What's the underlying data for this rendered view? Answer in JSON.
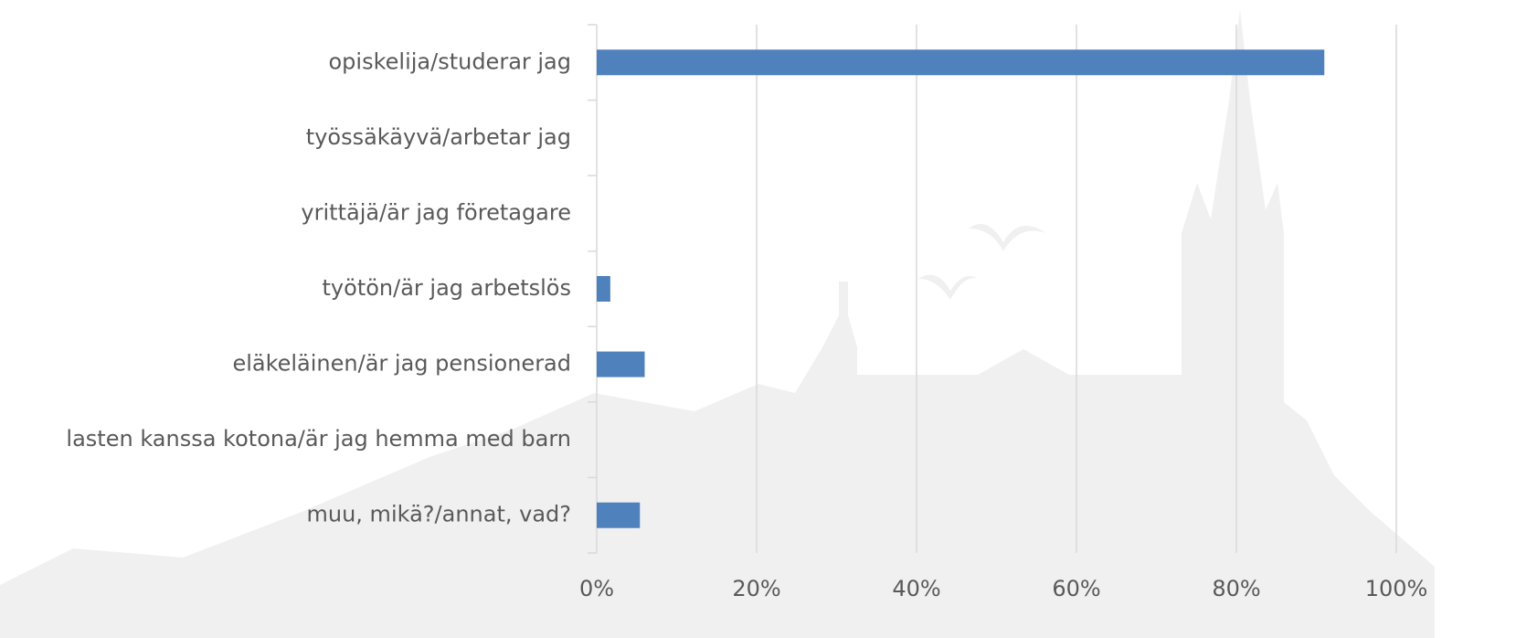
{
  "chart_data": {
    "type": "bar",
    "orientation": "horizontal",
    "categories": [
      "opiskelija/studerar jag",
      "työssäkäyvä/arbetar jag",
      "yrittäjä/är jag företagare",
      "työtön/är jag arbetslös",
      "eläkeläinen/är jag pensionerad",
      "lasten kanssa kotona/är jag hemma med barn",
      "muu, mikä?/annat, vad?"
    ],
    "values": [
      91,
      0,
      0,
      1.7,
      6,
      0,
      5.4
    ],
    "color": "#4f81bd",
    "xlim": [
      0,
      100
    ],
    "xticks": [
      {
        "value": 0,
        "label": "0%"
      },
      {
        "value": 20,
        "label": "20%"
      },
      {
        "value": 40,
        "label": "40%"
      },
      {
        "value": 60,
        "label": "60%"
      },
      {
        "value": 80,
        "label": "80%"
      },
      {
        "value": 100,
        "label": "100%"
      }
    ],
    "grid": true
  }
}
